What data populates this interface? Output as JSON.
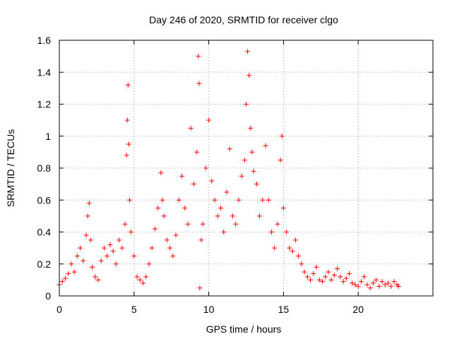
{
  "chart_data": {
    "type": "scatter",
    "title": "Day 246 of 2020, SRMTID for receiver clgo",
    "xlabel": "GPS time / hours",
    "ylabel": "SRMTID / TECUs",
    "xlim": [
      0,
      25
    ],
    "ylim": [
      0,
      1.6
    ],
    "xticks": [
      0,
      5,
      10,
      15,
      20
    ],
    "xtick_labels": [
      "0",
      "5",
      "10",
      "15",
      "20"
    ],
    "yticks": [
      0,
      0.2,
      0.4,
      0.6,
      0.8,
      1,
      1.2,
      1.4,
      1.6
    ],
    "ytick_labels": [
      "0",
      "0.2",
      "0.4",
      "0.6",
      "0.8",
      "1",
      "1.2",
      "1.4",
      "1.6"
    ],
    "grid": true,
    "marker": "+",
    "series": [
      {
        "name": "SRMTID",
        "color": "#ff0000",
        "x": [
          0.0,
          0.2,
          0.4,
          0.6,
          0.8,
          1.0,
          1.2,
          1.4,
          1.6,
          1.8,
          1.9,
          2.0,
          2.1,
          2.2,
          2.4,
          2.6,
          2.8,
          3.0,
          3.2,
          3.4,
          3.6,
          3.8,
          4.0,
          4.2,
          4.4,
          4.5,
          4.55,
          4.6,
          4.65,
          4.7,
          4.8,
          5.0,
          5.2,
          5.4,
          5.6,
          5.8,
          6.0,
          6.2,
          6.4,
          6.6,
          6.8,
          6.9,
          7.0,
          7.2,
          7.4,
          7.6,
          7.8,
          8.0,
          8.2,
          8.4,
          8.6,
          8.8,
          9.0,
          9.2,
          9.3,
          9.35,
          9.4,
          9.5,
          9.6,
          9.8,
          10.0,
          10.2,
          10.4,
          10.6,
          10.8,
          11.0,
          11.2,
          11.4,
          11.6,
          11.8,
          12.0,
          12.2,
          12.4,
          12.5,
          12.6,
          12.7,
          12.8,
          12.9,
          13.0,
          13.2,
          13.4,
          13.6,
          13.8,
          14.0,
          14.2,
          14.4,
          14.6,
          14.8,
          14.9,
          15.0,
          15.2,
          15.4,
          15.6,
          15.8,
          16.0,
          16.2,
          16.4,
          16.6,
          16.8,
          17.0,
          17.2,
          17.4,
          17.6,
          17.8,
          18.0,
          18.2,
          18.4,
          18.6,
          18.8,
          19.0,
          19.2,
          19.4,
          19.6,
          19.8,
          20.0,
          20.2,
          20.4,
          20.6,
          20.8,
          21.0,
          21.2,
          21.4,
          21.6,
          21.8,
          22.0,
          22.2,
          22.4,
          22.6,
          22.7
        ],
        "y": [
          0.07,
          0.09,
          0.11,
          0.14,
          0.2,
          0.15,
          0.25,
          0.3,
          0.22,
          0.38,
          0.5,
          0.58,
          0.35,
          0.18,
          0.12,
          0.1,
          0.22,
          0.3,
          0.25,
          0.32,
          0.28,
          0.2,
          0.35,
          0.3,
          0.45,
          0.88,
          1.1,
          1.32,
          0.95,
          0.6,
          0.4,
          0.25,
          0.12,
          0.1,
          0.08,
          0.12,
          0.2,
          0.3,
          0.42,
          0.55,
          0.77,
          0.6,
          0.5,
          0.35,
          0.3,
          0.25,
          0.38,
          0.6,
          0.75,
          0.55,
          0.45,
          1.05,
          0.7,
          0.9,
          1.5,
          1.33,
          0.05,
          0.35,
          0.45,
          0.8,
          1.1,
          0.72,
          0.6,
          0.5,
          0.55,
          0.4,
          0.65,
          0.92,
          0.5,
          0.45,
          0.6,
          0.75,
          0.85,
          1.2,
          1.53,
          1.38,
          1.05,
          0.9,
          0.78,
          0.7,
          0.5,
          0.6,
          0.94,
          0.6,
          0.4,
          0.3,
          0.45,
          0.85,
          1.0,
          0.55,
          0.4,
          0.3,
          0.28,
          0.35,
          0.25,
          0.2,
          0.15,
          0.12,
          0.1,
          0.14,
          0.18,
          0.1,
          0.09,
          0.12,
          0.15,
          0.1,
          0.13,
          0.17,
          0.12,
          0.09,
          0.11,
          0.14,
          0.08,
          0.07,
          0.06,
          0.09,
          0.12,
          0.07,
          0.05,
          0.08,
          0.1,
          0.06,
          0.09,
          0.07,
          0.08,
          0.06,
          0.09,
          0.07,
          0.06
        ]
      }
    ]
  }
}
